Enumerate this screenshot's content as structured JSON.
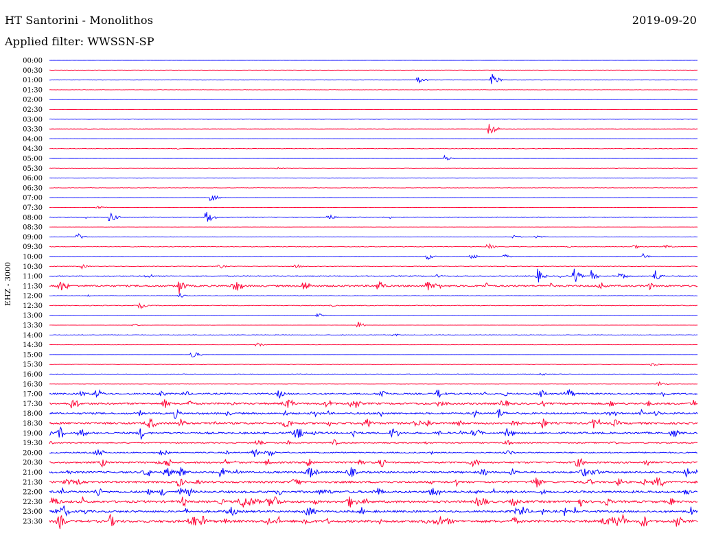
{
  "header": {
    "station_title": "HT Santorini - Monolithos",
    "date": "2019-09-20",
    "filter_text": "Applied filter: WWSSN-SP"
  },
  "colors": {
    "even_trace": "#0000ff",
    "odd_trace": "#ff0033",
    "text": "#000000",
    "background": "#ffffff"
  },
  "chart_data": {
    "type": "line",
    "chart_kind": "helicorder",
    "ylabel": "EHZ - 3000",
    "x_unit": "minutes",
    "xlim": [
      0,
      30
    ],
    "rows": [
      {
        "label": "00:00",
        "activity": 0.3,
        "events": []
      },
      {
        "label": "00:30",
        "activity": 0.3,
        "events": []
      },
      {
        "label": "01:00",
        "activity": 0.4,
        "events": [
          {
            "t": 17.1,
            "amp": 0.6
          },
          {
            "t": 20.5,
            "amp": 1.1
          }
        ]
      },
      {
        "label": "01:30",
        "activity": 0.5,
        "events": []
      },
      {
        "label": "02:00",
        "activity": 0.3,
        "events": []
      },
      {
        "label": "02:30",
        "activity": 0.3,
        "events": []
      },
      {
        "label": "03:00",
        "activity": 0.5,
        "events": []
      },
      {
        "label": "03:30",
        "activity": 0.4,
        "events": [
          {
            "t": 20.4,
            "amp": 1.4
          }
        ]
      },
      {
        "label": "04:00",
        "activity": 0.4,
        "events": []
      },
      {
        "label": "04:30",
        "activity": 0.8,
        "events": []
      },
      {
        "label": "05:00",
        "activity": 0.3,
        "events": [
          {
            "t": 18.3,
            "amp": 0.5
          }
        ]
      },
      {
        "label": "05:30",
        "activity": 0.4,
        "events": [
          {
            "t": 10.5,
            "amp": 0.2
          }
        ]
      },
      {
        "label": "06:00",
        "activity": 0.6,
        "events": []
      },
      {
        "label": "06:30",
        "activity": 0.6,
        "events": []
      },
      {
        "label": "07:00",
        "activity": 0.4,
        "events": [
          {
            "t": 7.5,
            "amp": 0.8
          }
        ]
      },
      {
        "label": "07:30",
        "activity": 0.5,
        "events": [
          {
            "t": 2.2,
            "amp": 0.4
          }
        ]
      },
      {
        "label": "08:00",
        "activity": 1.2,
        "events": [
          {
            "t": 2.8,
            "amp": 1.0
          },
          {
            "t": 7.3,
            "amp": 1.2
          },
          {
            "t": 12.9,
            "amp": 0.6
          }
        ]
      },
      {
        "label": "08:30",
        "activity": 0.3,
        "events": []
      },
      {
        "label": "09:00",
        "activity": 0.5,
        "events": [
          {
            "t": 1.3,
            "amp": 0.6
          },
          {
            "t": 21.5,
            "amp": 0.3
          },
          {
            "t": 22.5,
            "amp": 0.4
          }
        ]
      },
      {
        "label": "09:30",
        "activity": 0.9,
        "events": [
          {
            "t": 20.3,
            "amp": 0.6
          },
          {
            "t": 27.0,
            "amp": 0.5
          },
          {
            "t": 28.5,
            "amp": 0.4
          }
        ]
      },
      {
        "label": "10:00",
        "activity": 0.9,
        "events": [
          {
            "t": 17.5,
            "amp": 0.6
          },
          {
            "t": 19.5,
            "amp": 0.6
          },
          {
            "t": 21.0,
            "amp": 0.6
          },
          {
            "t": 27.5,
            "amp": 0.5
          }
        ]
      },
      {
        "label": "10:30",
        "activity": 0.8,
        "events": [
          {
            "t": 1.5,
            "amp": 0.4
          },
          {
            "t": 7.9,
            "amp": 0.4
          },
          {
            "t": 11.4,
            "amp": 0.4
          }
        ]
      },
      {
        "label": "11:00",
        "activity": 1.5,
        "events": [
          {
            "t": 22.6,
            "amp": 1.2
          },
          {
            "t": 24.3,
            "amp": 1.3
          },
          {
            "t": 25.1,
            "amp": 1.0
          },
          {
            "t": 26.4,
            "amp": 1.0
          },
          {
            "t": 28.0,
            "amp": 1.2
          }
        ]
      },
      {
        "label": "11:30",
        "activity": 2.6,
        "events": [
          {
            "t": 6.0,
            "amp": 1.4
          },
          {
            "t": 11.8,
            "amp": 1.2
          },
          {
            "t": 15.2,
            "amp": 1.3
          },
          {
            "t": 17.5,
            "amp": 1.0
          }
        ]
      },
      {
        "label": "12:00",
        "activity": 0.8,
        "events": [
          {
            "t": 6.0,
            "amp": 0.5
          }
        ]
      },
      {
        "label": "12:30",
        "activity": 1.1,
        "events": [
          {
            "t": 4.2,
            "amp": 0.6
          }
        ]
      },
      {
        "label": "13:00",
        "activity": 0.3,
        "events": [
          {
            "t": 12.4,
            "amp": 0.4
          }
        ]
      },
      {
        "label": "13:30",
        "activity": 0.3,
        "events": [
          {
            "t": 14.3,
            "amp": 0.6
          },
          {
            "t": 3.9,
            "amp": 0.2
          }
        ]
      },
      {
        "label": "14:00",
        "activity": 1.0,
        "events": []
      },
      {
        "label": "14:30",
        "activity": 0.3,
        "events": [
          {
            "t": 9.6,
            "amp": 0.4
          }
        ]
      },
      {
        "label": "15:00",
        "activity": 0.3,
        "events": [
          {
            "t": 6.6,
            "amp": 0.8
          }
        ]
      },
      {
        "label": "15:30",
        "activity": 0.4,
        "events": [
          {
            "t": 27.9,
            "amp": 0.4
          }
        ]
      },
      {
        "label": "16:00",
        "activity": 1.0,
        "events": []
      },
      {
        "label": "16:30",
        "activity": 0.4,
        "events": [
          {
            "t": 28.2,
            "amp": 0.5
          }
        ]
      },
      {
        "label": "17:00",
        "activity": 2.4,
        "events": [
          {
            "t": 1.5,
            "amp": 0.6
          },
          {
            "t": 18.0,
            "amp": 1.0
          },
          {
            "t": 22.7,
            "amp": 1.0
          },
          {
            "t": 28.4,
            "amp": 0.8
          }
        ]
      },
      {
        "label": "17:30",
        "activity": 2.8,
        "events": [
          {
            "t": 1.0,
            "amp": 1.0
          },
          {
            "t": 5.3,
            "amp": 1.0
          },
          {
            "t": 21.0,
            "amp": 1.0
          }
        ]
      },
      {
        "label": "18:00",
        "activity": 2.7,
        "events": [
          {
            "t": 5.8,
            "amp": 1.0
          },
          {
            "t": 20.8,
            "amp": 1.0
          }
        ]
      },
      {
        "label": "18:30",
        "activity": 3.0,
        "events": [
          {
            "t": 6.1,
            "amp": 0.8
          },
          {
            "t": 14.7,
            "amp": 1.0
          }
        ]
      },
      {
        "label": "19:00",
        "activity": 3.0,
        "events": [
          {
            "t": 11.5,
            "amp": 1.0
          }
        ]
      },
      {
        "label": "19:30",
        "activity": 1.8,
        "events": [
          {
            "t": 9.6,
            "amp": 0.6
          },
          {
            "t": 26.0,
            "amp": 0.6
          }
        ]
      },
      {
        "label": "20:00",
        "activity": 2.0,
        "events": [
          {
            "t": 5.2,
            "amp": 0.8
          }
        ]
      },
      {
        "label": "20:30",
        "activity": 2.6,
        "events": [
          {
            "t": 12.0,
            "amp": 1.0
          },
          {
            "t": 27.6,
            "amp": 0.8
          }
        ]
      },
      {
        "label": "21:00",
        "activity": 2.9,
        "events": [
          {
            "t": 6.1,
            "amp": 1.0
          },
          {
            "t": 21.4,
            "amp": 0.8
          }
        ]
      },
      {
        "label": "21:30",
        "activity": 3.0,
        "events": [
          {
            "t": 6.0,
            "amp": 1.0
          }
        ]
      },
      {
        "label": "22:00",
        "activity": 3.3,
        "events": [
          {
            "t": 29.4,
            "amp": 0.8
          }
        ]
      },
      {
        "label": "22:30",
        "activity": 3.4,
        "events": [
          {
            "t": 0.2,
            "amp": 1.2
          }
        ]
      },
      {
        "label": "23:00",
        "activity": 3.1,
        "events": [
          {
            "t": 21.9,
            "amp": 1.2
          }
        ]
      },
      {
        "label": "23:30",
        "activity": 3.6,
        "events": [
          {
            "t": 0.5,
            "amp": 1.3
          },
          {
            "t": 2.8,
            "amp": 1.2
          },
          {
            "t": 7.1,
            "amp": 1.0
          }
        ]
      }
    ]
  }
}
